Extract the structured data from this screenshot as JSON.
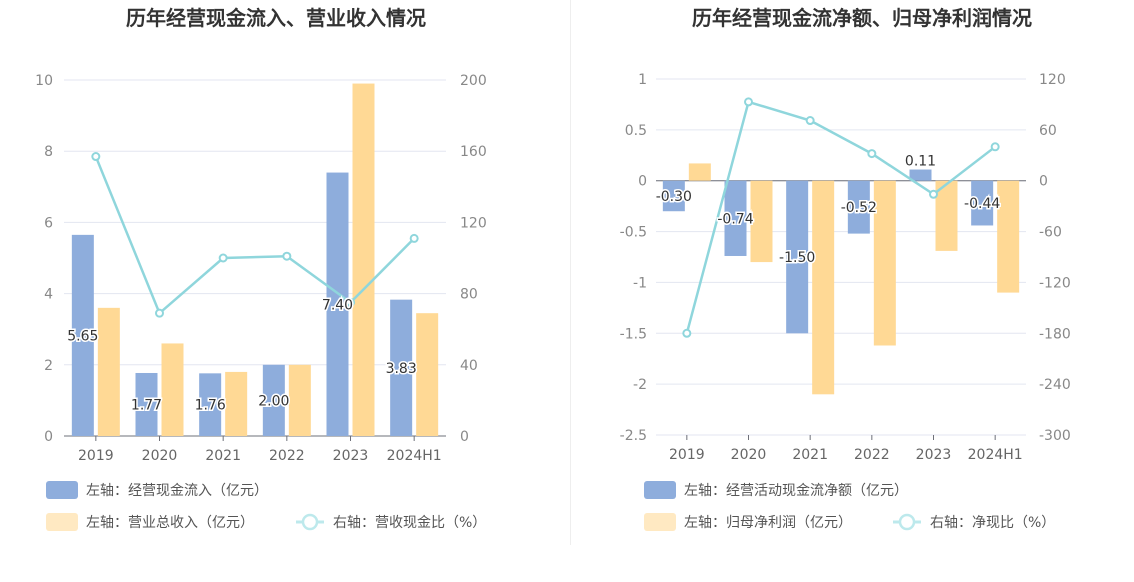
{
  "chart_data": [
    {
      "type": "bar",
      "title": "历年经营现金流入、营业收入情况",
      "categories": [
        "2019",
        "2020",
        "2021",
        "2022",
        "2023",
        "2024H1"
      ],
      "left_axis": {
        "ylim": [
          0,
          10
        ],
        "ticks": [
          "0",
          "2",
          "4",
          "6",
          "8",
          "10"
        ]
      },
      "right_axis": {
        "ylim": [
          0,
          200
        ],
        "ticks": [
          "0",
          "40",
          "80",
          "120",
          "160",
          "200"
        ]
      },
      "series": [
        {
          "name": "左轴：经营现金流入（亿元）",
          "kind": "bar",
          "axis": "left",
          "color": "#8eaddc",
          "values": [
            5.65,
            1.77,
            1.76,
            2.0,
            7.4,
            3.83
          ],
          "labels": [
            "5.65",
            "1.77",
            "1.76",
            "2.00",
            "7.40",
            "3.83"
          ]
        },
        {
          "name": "左轴：营业总收入（亿元）",
          "kind": "bar",
          "axis": "left",
          "color": "#ffd995",
          "values": [
            3.6,
            2.6,
            1.8,
            2.0,
            9.9,
            3.45
          ]
        },
        {
          "name": "右轴：营收现金比（%）",
          "kind": "line",
          "axis": "right",
          "color": "#8fd6dc",
          "values": [
            157,
            69,
            100,
            101,
            75,
            111
          ]
        }
      ]
    },
    {
      "type": "bar",
      "title": "历年经营现金流净额、归母净利润情况",
      "categories": [
        "2019",
        "2020",
        "2021",
        "2022",
        "2023",
        "2024H1"
      ],
      "left_axis": {
        "ylim": [
          -2.5,
          1
        ],
        "ticks": [
          "-2.5",
          "-2",
          "-1.5",
          "-1",
          "-0.5",
          "0",
          "0.5",
          "1"
        ]
      },
      "right_axis": {
        "ylim": [
          -300,
          120
        ],
        "ticks": [
          "-300",
          "-240",
          "-180",
          "-120",
          "-60",
          "0",
          "60",
          "120"
        ]
      },
      "series": [
        {
          "name": "左轴：经营活动现金流净额（亿元）",
          "kind": "bar",
          "axis": "left",
          "color": "#8eaddc",
          "values": [
            -0.3,
            -0.74,
            -1.5,
            -0.52,
            0.11,
            -0.44
          ],
          "labels": [
            "-0.30",
            "-0.74",
            "-1.50",
            "-0.52",
            "0.11",
            "-0.44"
          ]
        },
        {
          "name": "左轴：归母净利润（亿元）",
          "kind": "bar",
          "axis": "left",
          "color": "#ffd995",
          "values": [
            0.17,
            -0.8,
            -2.1,
            -1.62,
            -0.69,
            -1.1
          ]
        },
        {
          "name": "右轴：净现比（%）",
          "kind": "line",
          "axis": "right",
          "color": "#8fd6dc",
          "values": [
            -180,
            93,
            71,
            32,
            -16,
            40
          ]
        }
      ]
    }
  ]
}
